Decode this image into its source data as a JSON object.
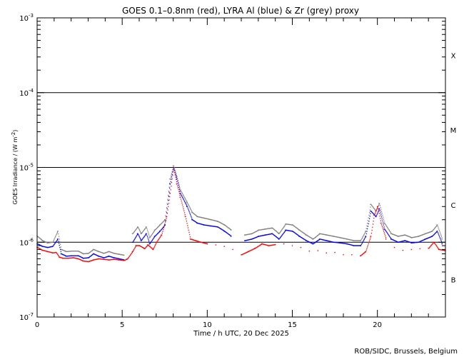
{
  "chart_data": {
    "type": "line",
    "title": "GOES 0.1–0.8nm (red), LYRA Al (blue) & Zr (grey) proxy",
    "xlabel": "Time / h UTC, 20 Dec 2025",
    "ylabel": {
      "main": "GOES Irradiance / (W m",
      "exp": "-2",
      "close": ")"
    },
    "xlim": [
      0,
      24
    ],
    "ylim": [
      1e-07,
      0.001
    ],
    "yscale": "log",
    "x_ticks": [
      "0",
      "5",
      "10",
      "15",
      "20"
    ],
    "y_ticks": [
      {
        "base": "10",
        "exp": "-7"
      },
      {
        "base": "10",
        "exp": "-6"
      },
      {
        "base": "10",
        "exp": "-5"
      },
      {
        "base": "10",
        "exp": "-4"
      },
      {
        "base": "10",
        "exp": "-3"
      }
    ],
    "class_labels": [
      "B",
      "C",
      "M",
      "X"
    ],
    "threshold_lines": [
      1e-06,
      1e-05,
      0.0001
    ],
    "credit": "ROB/SIDC, Brussels, Belgium",
    "colors": {
      "goes": "#ff0000",
      "al": "#0000ff",
      "zr": "#808080"
    },
    "series": [
      {
        "color": "#ff0000",
        "x": [
          0,
          0.3,
          0.6,
          0.9,
          1.1,
          1.3,
          1.5,
          1.8,
          2.1,
          2.4,
          2.7,
          3.0,
          3.3,
          3.6,
          3.9,
          4.2,
          4.5,
          4.8,
          5.1,
          5.3,
          5.6,
          5.8,
          6.0,
          6.3,
          6.5,
          6.8,
          7.0,
          7.3,
          7.6,
          7.8,
          8.0,
          8.2,
          8.4,
          8.7,
          9.0,
          9.3,
          9.6,
          10.0,
          10.5,
          11.0,
          11.5,
          12.0,
          12.4,
          12.8,
          13.2,
          13.6,
          14.0,
          14.5,
          15.0,
          15.5,
          16.0,
          16.5,
          17.0,
          17.5,
          18.0,
          18.5,
          19.0,
          19.3,
          19.6,
          19.8,
          20.0,
          20.2,
          20.5,
          21.0,
          21.5,
          22.0,
          22.5,
          23.0,
          23.3,
          23.6,
          24.0
        ],
        "y": [
          8.5e-07,
          7.8e-07,
          7.5e-07,
          7.2e-07,
          7.3e-07,
          6.3e-07,
          6.1e-07,
          6.1e-07,
          6.2e-07,
          6e-07,
          5.6e-07,
          5.5e-07,
          5.8e-07,
          6e-07,
          5.9e-07,
          5.8e-07,
          5.9e-07,
          5.8e-07,
          5.7e-07,
          6e-07,
          7.5e-07,
          9e-07,
          9e-07,
          8.2e-07,
          9.2e-07,
          8e-07,
          1e-06,
          1.25e-06,
          2.2e-06,
          4.5e-06,
          9.8e-06,
          6e-06,
          4e-06,
          2.2e-06,
          1.1e-06,
          1.05e-06,
          1e-06,
          9.5e-07,
          9.2e-07,
          8.8e-07,
          8e-07,
          6.8e-07,
          7.5e-07,
          8.3e-07,
          9.5e-07,
          9e-07,
          9.3e-07,
          9.5e-07,
          9e-07,
          8.5e-07,
          7.6e-07,
          7.7e-07,
          7.2e-07,
          7.3e-07,
          6.8e-07,
          6.8e-07,
          6.6e-07,
          7.5e-07,
          1.2e-06,
          2.3e-06,
          3e-06,
          1.8e-06,
          1.1e-06,
          8.5e-07,
          7.8e-07,
          8e-07,
          8.2e-07,
          8.3e-07,
          1e-06,
          8e-07,
          7.7e-07
        ]
      },
      {
        "color": "#0000ff",
        "x": [
          0,
          0.3,
          0.6,
          0.9,
          1.2,
          1.4,
          1.7,
          2.0,
          2.4,
          2.7,
          3.0,
          3.3,
          3.6,
          3.9,
          4.2,
          4.5,
          4.8,
          5.1,
          5.6,
          5.9,
          6.1,
          6.4,
          6.6,
          6.9,
          7.2,
          7.5,
          7.8,
          8.0,
          8.2,
          8.4,
          8.8,
          9.1,
          9.4,
          9.8,
          10.2,
          10.6,
          11.0,
          11.4,
          12.2,
          12.6,
          13.0,
          13.4,
          13.8,
          14.2,
          14.6,
          15.0,
          15.4,
          15.8,
          16.2,
          16.6,
          17.0,
          17.4,
          17.8,
          18.2,
          18.6,
          19.0,
          19.3,
          19.6,
          19.9,
          20.1,
          20.4,
          20.8,
          21.2,
          21.6,
          22.0,
          22.4,
          22.8,
          23.2,
          23.5,
          23.8
        ],
        "y": [
          9.5e-07,
          8.8e-07,
          8.5e-07,
          8.8e-07,
          1.1e-06,
          7e-07,
          6.5e-07,
          6.6e-07,
          6.6e-07,
          6.1e-07,
          6.2e-07,
          7e-07,
          6.5e-07,
          6.2e-07,
          6.5e-07,
          6.2e-07,
          6e-07,
          5.8e-07,
          1e-06,
          1.3e-06,
          1.05e-06,
          1.3e-06,
          9.5e-07,
          1.2e-06,
          1.4e-06,
          1.7e-06,
          6e-06,
          1e-05,
          7e-06,
          4.5e-06,
          3e-06,
          2e-06,
          1.8e-06,
          1.7e-06,
          1.65e-06,
          1.6e-06,
          1.4e-06,
          1.2e-06,
          1.05e-06,
          1.1e-06,
          1.2e-06,
          1.25e-06,
          1.3e-06,
          1.1e-06,
          1.45e-06,
          1.4e-06,
          1.2e-06,
          1.05e-06,
          9.5e-07,
          1.1e-06,
          1.05e-06,
          1e-06,
          9.8e-07,
          9.5e-07,
          9e-07,
          9e-07,
          1.2e-06,
          2.6e-06,
          2.2e-06,
          2.8e-06,
          1.5e-06,
          1.1e-06,
          1e-06,
          1.05e-06,
          9.8e-07,
          1e-06,
          1.1e-06,
          1.2e-06,
          1.4e-06,
          9.5e-07
        ]
      },
      {
        "color": "#808080",
        "x": [
          0,
          0.3,
          0.6,
          0.9,
          1.2,
          1.4,
          1.7,
          2.0,
          2.4,
          2.7,
          3.0,
          3.3,
          3.6,
          3.9,
          4.2,
          4.5,
          4.8,
          5.1,
          5.6,
          5.9,
          6.1,
          6.4,
          6.6,
          6.9,
          7.2,
          7.5,
          7.8,
          8.0,
          8.2,
          8.4,
          8.8,
          9.1,
          9.4,
          9.8,
          10.2,
          10.6,
          11.0,
          11.4,
          12.2,
          12.6,
          13.0,
          13.4,
          13.8,
          14.2,
          14.6,
          15.0,
          15.4,
          15.8,
          16.2,
          16.6,
          17.0,
          17.4,
          17.8,
          18.2,
          18.6,
          19.0,
          19.3,
          19.6,
          19.9,
          20.1,
          20.4,
          20.8,
          21.2,
          21.6,
          22.0,
          22.4,
          22.8,
          23.2,
          23.5,
          23.8
        ],
        "y": [
          1.2e-06,
          1.05e-06,
          9.8e-07,
          1e-06,
          1.4e-06,
          8e-07,
          7.5e-07,
          7.6e-07,
          7.6e-07,
          7e-07,
          7.1e-07,
          8e-07,
          7.5e-07,
          7.1e-07,
          7.5e-07,
          7.1e-07,
          6.9e-07,
          6.7e-07,
          1.3e-06,
          1.6e-06,
          1.3e-06,
          1.6e-06,
          1.15e-06,
          1.45e-06,
          1.7e-06,
          2e-06,
          7e-06,
          1.05e-05,
          7.5e-06,
          5e-06,
          3.4e-06,
          2.5e-06,
          2.2e-06,
          2.1e-06,
          2e-06,
          1.9e-06,
          1.7e-06,
          1.45e-06,
          1.25e-06,
          1.3e-06,
          1.45e-06,
          1.5e-06,
          1.55e-06,
          1.3e-06,
          1.75e-06,
          1.7e-06,
          1.45e-06,
          1.25e-06,
          1.1e-06,
          1.3e-06,
          1.25e-06,
          1.2e-06,
          1.15e-06,
          1.1e-06,
          1.05e-06,
          1.05e-06,
          1.4e-06,
          3.2e-06,
          2.6e-06,
          3.3e-06,
          1.8e-06,
          1.3e-06,
          1.2e-06,
          1.25e-06,
          1.15e-06,
          1.2e-06,
          1.3e-06,
          1.4e-06,
          1.7e-06,
          1.1e-06
        ]
      }
    ]
  }
}
